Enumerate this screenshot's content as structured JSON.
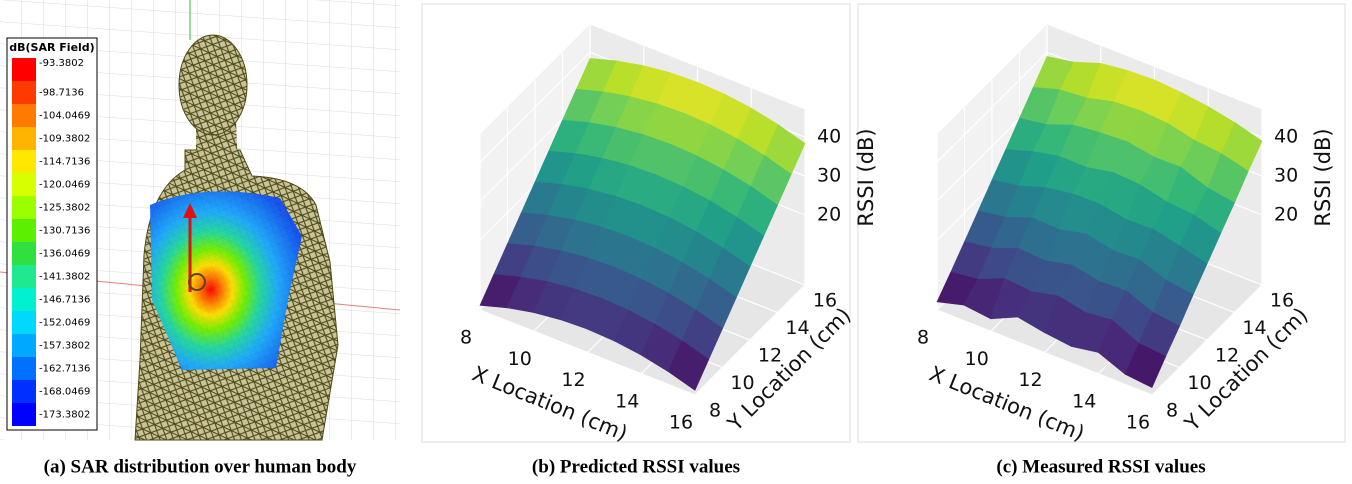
{
  "chart_data": [
    {
      "type": "colorbar",
      "caption": "(a) SAR distribution over human body",
      "title": "dB(SAR Field)",
      "ticks": [
        -93.3802,
        -98.7136,
        -104.0469,
        -109.3802,
        -114.7136,
        -120.0469,
        -125.3802,
        -130.7136,
        -136.0469,
        -141.3802,
        -146.7136,
        -152.0469,
        -157.3802,
        -162.7136,
        -168.0469,
        -173.3802
      ],
      "colors": [
        "#ff0000",
        "#ff3a00",
        "#ff7a00",
        "#ffb400",
        "#ffe800",
        "#d8ff00",
        "#9cff00",
        "#5cf000",
        "#30e040",
        "#20e890",
        "#00f0d0",
        "#00d8ff",
        "#00a8ff",
        "#0070ff",
        "#0030ff",
        "#0000ff"
      ]
    },
    {
      "type": "surface3d",
      "caption": "(b) Predicted RSSI values",
      "colormap": "viridis",
      "xlabel": "X Location (cm)",
      "ylabel": "Y Location (cm)",
      "zlabel": "RSSI (dB)",
      "x": [
        8,
        9,
        10,
        11,
        12,
        13,
        14,
        15,
        16
      ],
      "y": [
        8,
        9,
        10,
        11,
        12,
        13,
        14,
        15,
        16
      ],
      "z": [
        [
          3.2,
          5.3,
          6.8,
          7.7,
          8,
          7.7,
          6.8,
          5.3,
          3.2
        ],
        [
          7.6,
          9.7,
          11.2,
          12.1,
          12.4,
          12.1,
          11.2,
          9.7,
          7.6
        ],
        [
          12,
          14.1,
          15.6,
          16.5,
          16.8,
          16.5,
          15.6,
          14.1,
          12
        ],
        [
          16.4,
          18.5,
          20,
          20.9,
          21.2,
          20.9,
          20,
          18.5,
          16.4
        ],
        [
          20.8,
          22.9,
          24.4,
          25.3,
          25.6,
          25.3,
          24.4,
          22.9,
          20.8
        ],
        [
          25.2,
          27.3,
          28.8,
          29.7,
          30,
          29.7,
          28.8,
          27.3,
          25.2
        ],
        [
          29.6,
          31.7,
          33.2,
          34.1,
          34.4,
          34.1,
          33.2,
          31.7,
          29.6
        ],
        [
          34,
          36.1,
          37.6,
          38.5,
          38.8,
          38.5,
          37.6,
          36.1,
          34
        ],
        [
          38.4,
          40.5,
          42,
          42.9,
          43.2,
          42.9,
          42,
          40.5,
          38.4
        ]
      ],
      "xlim": [
        8,
        16
      ],
      "ylim": [
        8,
        16
      ],
      "zlim": [
        2,
        47
      ],
      "xticks": [
        8,
        10,
        12,
        14,
        16
      ],
      "yticks": [
        8,
        10,
        12,
        14,
        16
      ],
      "zticks": [
        20,
        30,
        40
      ],
      "grid": true
    },
    {
      "type": "surface3d",
      "caption": "(c) Measured RSSI values",
      "colormap": "viridis",
      "xlabel": "X Location (cm)",
      "ylabel": "Y Location (cm)",
      "zlabel": "RSSI (dB)",
      "x": [
        8,
        9,
        10,
        11,
        12,
        13,
        14,
        15,
        16
      ],
      "y": [
        8,
        9,
        10,
        11,
        12,
        13,
        14,
        15,
        16
      ],
      "z": [
        [
          4.1,
          6.0,
          5.2,
          8.4,
          7.1,
          6.3,
          7.5,
          4.6,
          3.9
        ],
        [
          8.2,
          9.1,
          12.0,
          11.4,
          13.0,
          11.5,
          12.3,
          9.0,
          8.4
        ],
        [
          12.5,
          13.6,
          16.2,
          15.8,
          17.4,
          16.0,
          16.3,
          13.5,
          12.6
        ],
        [
          16.9,
          18.0,
          20.6,
          20.3,
          21.9,
          20.4,
          20.7,
          18.1,
          17.2
        ],
        [
          21.3,
          22.5,
          24.8,
          25.9,
          26.1,
          24.8,
          25.0,
          23.4,
          21.5
        ],
        [
          25.6,
          27.8,
          29.3,
          29.2,
          30.6,
          30.2,
          28.5,
          27.9,
          25.9
        ],
        [
          30.1,
          31.2,
          33.8,
          34.6,
          35.0,
          33.8,
          33.9,
          31.3,
          30.2
        ],
        [
          34.5,
          36.6,
          37.2,
          39.0,
          39.4,
          38.9,
          37.3,
          36.6,
          34.8
        ],
        [
          38.9,
          40.2,
          42.6,
          43.5,
          43.8,
          43.3,
          42.4,
          41.0,
          39.0
        ]
      ],
      "xlim": [
        8,
        16
      ],
      "ylim": [
        8,
        16
      ],
      "zlim": [
        2,
        47
      ],
      "xticks": [
        8,
        10,
        12,
        14,
        16
      ],
      "yticks": [
        8,
        10,
        12,
        14,
        16
      ],
      "zticks": [
        20,
        30,
        40
      ],
      "grid": true
    }
  ]
}
